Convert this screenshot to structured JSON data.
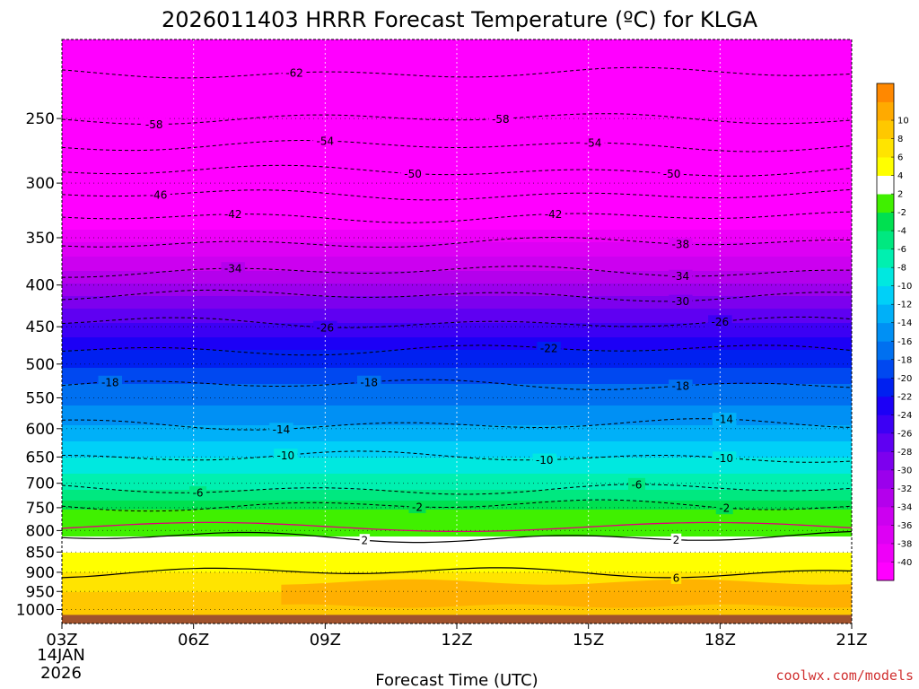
{
  "title": "2026011403 HRRR Forecast Temperature (ºC) for KLGA",
  "credit": "coolwx.com/models",
  "chart_data": {
    "type": "contour",
    "title": "2026011403 HRRR Forecast Temperature (ºC) for KLGA",
    "xlabel": "Forecast Time (UTC)",
    "ylabel": "",
    "date_line1": "14JAN",
    "date_line2": "2026",
    "x_ticks": [
      {
        "label": "03Z",
        "hour": 3
      },
      {
        "label": "06Z",
        "hour": 6
      },
      {
        "label": "09Z",
        "hour": 9
      },
      {
        "label": "12Z",
        "hour": 12
      },
      {
        "label": "15Z",
        "hour": 15
      },
      {
        "label": "18Z",
        "hour": 18
      },
      {
        "label": "21Z",
        "hour": 21
      }
    ],
    "xlim": [
      3,
      21
    ],
    "y_ticks": [
      250,
      300,
      350,
      400,
      450,
      500,
      550,
      600,
      650,
      700,
      750,
      800,
      850,
      900,
      950,
      1000
    ],
    "ylim": [
      200,
      1040
    ],
    "y_axis_scale": "log-pressure (hPa)",
    "ground_pressure_hPa": 1015,
    "temperature_profile": [
      {
        "p": 200,
        "t": -64
      },
      {
        "p": 220,
        "t": -62
      },
      {
        "p": 250,
        "t": -58
      },
      {
        "p": 270,
        "t": -54
      },
      {
        "p": 290,
        "t": -50
      },
      {
        "p": 310,
        "t": -46
      },
      {
        "p": 330,
        "t": -42
      },
      {
        "p": 355,
        "t": -38
      },
      {
        "p": 385,
        "t": -34
      },
      {
        "p": 412,
        "t": -30
      },
      {
        "p": 445,
        "t": -26
      },
      {
        "p": 480,
        "t": -22
      },
      {
        "p": 530,
        "t": -18
      },
      {
        "p": 593,
        "t": -14
      },
      {
        "p": 650,
        "t": -10
      },
      {
        "p": 712,
        "t": -6
      },
      {
        "p": 745,
        "t": -3
      },
      {
        "p": 775,
        "t": 0
      },
      {
        "p": 815,
        "t": 2
      },
      {
        "p": 870,
        "t": 5
      },
      {
        "p": 900,
        "t": 6
      },
      {
        "p": 950,
        "t": 8
      },
      {
        "p": 1000,
        "t": 8
      }
    ],
    "contours": [
      {
        "level": -62,
        "p": 220,
        "labels": [
          {
            "x": 8.3,
            "text": "-62"
          }
        ]
      },
      {
        "level": -58,
        "p": 250,
        "labels": [
          {
            "x": 5.1,
            "text": "-58"
          },
          {
            "x": 13.0,
            "text": "-58"
          }
        ]
      },
      {
        "level": -54,
        "p": 270,
        "labels": [
          {
            "x": 9.0,
            "text": "-54"
          },
          {
            "x": 15.1,
            "text": "-54"
          }
        ]
      },
      {
        "level": -50,
        "p": 290,
        "labels": [
          {
            "x": 11.0,
            "text": "-50"
          },
          {
            "x": 16.9,
            "text": "-50"
          }
        ]
      },
      {
        "level": -46,
        "p": 310,
        "labels": [
          {
            "x": 5.2,
            "text": "-46"
          }
        ]
      },
      {
        "level": -42,
        "p": 330,
        "labels": [
          {
            "x": 6.9,
            "text": "-42"
          },
          {
            "x": 14.2,
            "text": "-42"
          }
        ]
      },
      {
        "level": -38,
        "p": 355,
        "labels": [
          {
            "x": 17.1,
            "text": "-38"
          }
        ]
      },
      {
        "level": -34,
        "p": 385,
        "labels": [
          {
            "x": 6.9,
            "text": "-34"
          },
          {
            "x": 17.1,
            "text": "-34"
          }
        ]
      },
      {
        "level": -30,
        "p": 412,
        "labels": [
          {
            "x": 17.1,
            "text": "-30"
          }
        ]
      },
      {
        "level": -26,
        "p": 445,
        "labels": [
          {
            "x": 9.0,
            "text": "-26"
          },
          {
            "x": 18.0,
            "text": "-26"
          }
        ]
      },
      {
        "level": -22,
        "p": 480,
        "labels": [
          {
            "x": 14.1,
            "text": "-22"
          }
        ]
      },
      {
        "level": -18,
        "p": 530,
        "labels": [
          {
            "x": 4.1,
            "text": "-18"
          },
          {
            "x": 10.0,
            "text": "-18"
          },
          {
            "x": 17.1,
            "text": "-18"
          }
        ]
      },
      {
        "level": -14,
        "p": 593,
        "labels": [
          {
            "x": 8.0,
            "text": "-14"
          },
          {
            "x": 18.1,
            "text": "-14"
          }
        ]
      },
      {
        "level": -10,
        "p": 650,
        "labels": [
          {
            "x": 8.1,
            "text": "-10"
          },
          {
            "x": 14.0,
            "text": "-10"
          },
          {
            "x": 18.1,
            "text": "-10"
          }
        ]
      },
      {
        "level": -6,
        "p": 712,
        "labels": [
          {
            "x": 6.1,
            "text": "-6"
          },
          {
            "x": 16.1,
            "text": "-6"
          }
        ]
      },
      {
        "level": -2,
        "p": 745,
        "labels": [
          {
            "x": 11.1,
            "text": "-2"
          },
          {
            "x": 18.1,
            "text": "-2"
          }
        ]
      },
      {
        "level": 2,
        "p": 815,
        "labels": [
          {
            "x": 9.9,
            "text": "2"
          },
          {
            "x": 17.0,
            "text": "2"
          }
        ]
      },
      {
        "level": 6,
        "p": 900,
        "labels": [
          {
            "x": 17.0,
            "text": "6"
          }
        ]
      }
    ],
    "colorbar": {
      "levels": [
        -40,
        -38,
        -36,
        -34,
        -32,
        -30,
        -28,
        -26,
        -24,
        -22,
        -20,
        -18,
        -16,
        -14,
        -12,
        -10,
        -8,
        -6,
        -4,
        -2,
        2,
        4,
        6,
        8,
        10
      ],
      "labels": [
        "-40",
        "-38",
        "-36",
        "-34",
        "-32",
        "-30",
        "-28",
        "-26",
        "-24",
        "-22",
        "-20",
        "-18",
        "-16",
        "-14",
        "-12",
        "-10",
        "-8",
        "-6",
        "-4",
        "-2",
        "2",
        "4",
        "6",
        "8",
        "10"
      ],
      "colors": [
        "#ff00ff",
        "#ee00f8",
        "#dd00f4",
        "#cc00f0",
        "#b400ec",
        "#9b00ec",
        "#7d00ee",
        "#5f00f2",
        "#3c00f4",
        "#1c00f6",
        "#0020f0",
        "#0048f0",
        "#0070f0",
        "#0090f4",
        "#00b0f8",
        "#00d0f8",
        "#00e8e0",
        "#00f0b0",
        "#00e880",
        "#00e050",
        "#40f000",
        "#ffffff",
        "#ffff00",
        "#ffe400",
        "#ffc800",
        "#ffaa00",
        "#ff8800"
      ]
    },
    "ground_color": "#a0522d"
  }
}
